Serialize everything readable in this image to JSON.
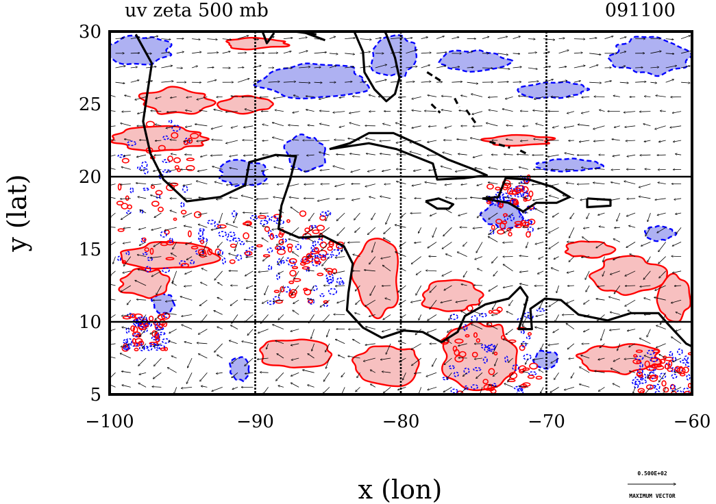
{
  "chart_data": {
    "type": "contour",
    "title": "uv zeta 500 mb",
    "date_label": "091100",
    "xlabel": "x (lon)",
    "ylabel": "y (lat)",
    "xlim": [
      -100,
      -60
    ],
    "ylim": [
      5,
      30
    ],
    "x_ticks": [
      -100,
      -90,
      -80,
      -70,
      -60
    ],
    "y_ticks": [
      5,
      10,
      15,
      20,
      25,
      30
    ],
    "x_tick_labels": [
      "−100",
      "−90",
      "−80",
      "−70",
      "−60"
    ],
    "y_tick_labels": [
      "5",
      "10",
      "15",
      "20",
      "25",
      "30"
    ],
    "gridlines_lon": [
      -90,
      -80,
      -70
    ],
    "gridlines_lat": [
      10,
      20
    ],
    "legend": {
      "value_label": "0.500E+02",
      "caption": "MAXIMUM VECTOR"
    },
    "colors": {
      "positive_line": "#ff0000",
      "positive_fill": "#f7c0c0",
      "negative_line": "#0000ff",
      "negative_fill": "#aeb1f2",
      "coast": "#000000"
    },
    "positive_regions": [
      {
        "lon": -95.5,
        "lat": 25.2,
        "rlon": 2.5,
        "rlat": 0.9
      },
      {
        "lon": -90.7,
        "lat": 25.0,
        "rlon": 1.8,
        "rlat": 0.6
      },
      {
        "lon": -96.5,
        "lat": 22.6,
        "rlon": 3.2,
        "rlat": 0.8
      },
      {
        "lon": -90.0,
        "lat": 29.2,
        "rlon": 2.2,
        "rlat": 0.4
      },
      {
        "lon": -95.8,
        "lat": 14.6,
        "rlon": 3.3,
        "rlat": 0.9
      },
      {
        "lon": -97.5,
        "lat": 12.6,
        "rlon": 1.8,
        "rlat": 1.0
      },
      {
        "lon": -81.6,
        "lat": 13.0,
        "rlon": 1.6,
        "rlat": 2.5
      },
      {
        "lon": -76.6,
        "lat": 11.8,
        "rlon": 2.2,
        "rlat": 1.0
      },
      {
        "lon": -87.2,
        "lat": 7.8,
        "rlon": 2.6,
        "rlat": 1.0
      },
      {
        "lon": -81.0,
        "lat": 7.0,
        "rlon": 2.6,
        "rlat": 1.4
      },
      {
        "lon": -74.4,
        "lat": 7.6,
        "rlon": 2.8,
        "rlat": 2.2
      },
      {
        "lon": -64.4,
        "lat": 13.2,
        "rlon": 2.4,
        "rlat": 1.3
      },
      {
        "lon": -67.0,
        "lat": 15.0,
        "rlon": 1.6,
        "rlat": 0.6
      },
      {
        "lon": -61.3,
        "lat": 11.5,
        "rlon": 1.1,
        "rlat": 1.6
      },
      {
        "lon": -65.0,
        "lat": 7.4,
        "rlon": 3.0,
        "rlat": 1.0
      },
      {
        "lon": -72.0,
        "lat": 22.5,
        "rlon": 2.4,
        "rlat": 0.35
      }
    ],
    "negative_regions": [
      {
        "lon": -98.0,
        "lat": 28.7,
        "rlon": 2.2,
        "rlat": 1.0
      },
      {
        "lon": -86.0,
        "lat": 26.6,
        "rlon": 4.0,
        "rlat": 1.1
      },
      {
        "lon": -80.5,
        "lat": 28.3,
        "rlon": 1.6,
        "rlat": 1.5
      },
      {
        "lon": -75.0,
        "lat": 28.0,
        "rlon": 2.5,
        "rlat": 0.7
      },
      {
        "lon": -69.5,
        "lat": 26.0,
        "rlon": 2.2,
        "rlat": 0.6
      },
      {
        "lon": -62.8,
        "lat": 28.3,
        "rlon": 2.7,
        "rlat": 1.3
      },
      {
        "lon": -90.8,
        "lat": 20.2,
        "rlon": 1.6,
        "rlat": 0.9
      },
      {
        "lon": -86.5,
        "lat": 21.6,
        "rlon": 1.4,
        "rlat": 1.2
      },
      {
        "lon": -68.5,
        "lat": 20.8,
        "rlon": 2.2,
        "rlat": 0.45
      },
      {
        "lon": -73.0,
        "lat": 17.5,
        "rlon": 1.4,
        "rlat": 1.0
      },
      {
        "lon": -96.3,
        "lat": 11.3,
        "rlon": 0.8,
        "rlat": 0.7
      },
      {
        "lon": -91.1,
        "lat": 6.7,
        "rlon": 0.7,
        "rlat": 0.8
      },
      {
        "lon": -70.0,
        "lat": 7.4,
        "rlon": 0.8,
        "rlat": 0.6
      },
      {
        "lon": -62.2,
        "lat": 16.1,
        "rlon": 1.0,
        "rlat": 0.5
      }
    ],
    "coastlines": [
      [
        [
          -98.2,
          29.8
        ],
        [
          -97.1,
          27.8
        ],
        [
          -97.4,
          25.8
        ],
        [
          -97.7,
          23.8
        ],
        [
          -97.2,
          21.6
        ],
        [
          -96.3,
          19.8
        ],
        [
          -94.7,
          18.3
        ],
        [
          -92.4,
          18.6
        ],
        [
          -90.7,
          19.4
        ],
        [
          -90.4,
          21.0
        ],
        [
          -88.6,
          21.5
        ],
        [
          -87.2,
          21.4
        ],
        [
          -87.6,
          19.8
        ],
        [
          -88.2,
          18.0
        ],
        [
          -88.4,
          16.4
        ],
        [
          -87.0,
          15.8
        ],
        [
          -85.3,
          15.9
        ],
        [
          -83.9,
          15.2
        ],
        [
          -83.3,
          14.0
        ],
        [
          -83.6,
          12.0
        ],
        [
          -83.7,
          10.8
        ],
        [
          -82.6,
          9.6
        ],
        [
          -81.3,
          8.9
        ],
        [
          -79.8,
          9.4
        ],
        [
          -78.5,
          9.3
        ],
        [
          -77.2,
          8.6
        ],
        [
          -76.1,
          9.3
        ],
        [
          -75.6,
          10.4
        ],
        [
          -74.2,
          11.2
        ],
        [
          -72.6,
          11.6
        ],
        [
          -71.8,
          12.4
        ],
        [
          -71.3,
          11.7
        ],
        [
          -71.6,
          10.5
        ],
        [
          -71.9,
          9.5
        ],
        [
          -71.0,
          9.5
        ],
        [
          -71.1,
          10.9
        ],
        [
          -70.1,
          11.6
        ],
        [
          -69.0,
          11.5
        ],
        [
          -67.8,
          10.5
        ],
        [
          -65.8,
          10.1
        ],
        [
          -64.2,
          10.6
        ],
        [
          -62.3,
          10.6
        ],
        [
          -61.7,
          9.9
        ],
        [
          -60.4,
          8.5
        ],
        [
          -60.0,
          8.3
        ]
      ],
      [
        [
          -85.2,
          29.4
        ],
        [
          -86.8,
          30.0
        ]
      ],
      [
        [
          -89.5,
          30.0
        ],
        [
          -89.2,
          29.2
        ],
        [
          -88.7,
          29.9
        ]
      ],
      [
        [
          -83.2,
          30.0
        ],
        [
          -82.6,
          28.6
        ],
        [
          -82.5,
          27.2
        ],
        [
          -81.8,
          26.0
        ],
        [
          -81.0,
          25.2
        ],
        [
          -80.4,
          25.7
        ],
        [
          -80.1,
          26.8
        ],
        [
          -80.4,
          28.2
        ],
        [
          -81.0,
          29.8
        ],
        [
          -81.1,
          30.0
        ]
      ],
      [
        [
          -84.9,
          21.9
        ],
        [
          -83.5,
          22.3
        ],
        [
          -82.2,
          23.0
        ],
        [
          -80.5,
          23.0
        ],
        [
          -78.5,
          22.1
        ],
        [
          -76.8,
          21.2
        ],
        [
          -75.0,
          20.5
        ],
        [
          -74.1,
          20.1
        ],
        [
          -75.6,
          19.9
        ],
        [
          -77.5,
          19.8
        ],
        [
          -77.8,
          20.9
        ],
        [
          -80.3,
          21.9
        ],
        [
          -82.2,
          22.3
        ],
        [
          -84.9,
          21.9
        ]
      ],
      [
        [
          -78.3,
          18.3
        ],
        [
          -77.4,
          18.5
        ],
        [
          -76.4,
          18.1
        ],
        [
          -76.7,
          17.8
        ],
        [
          -77.5,
          17.8
        ],
        [
          -78.3,
          18.3
        ]
      ],
      [
        [
          -74.4,
          18.5
        ],
        [
          -73.3,
          18.6
        ],
        [
          -72.8,
          19.9
        ],
        [
          -71.2,
          19.8
        ],
        [
          -69.6,
          19.3
        ],
        [
          -68.4,
          18.6
        ],
        [
          -69.3,
          18.2
        ],
        [
          -70.7,
          18.2
        ],
        [
          -71.6,
          17.6
        ],
        [
          -72.6,
          18.2
        ],
        [
          -74.4,
          18.5
        ]
      ],
      [
        [
          -67.2,
          18.5
        ],
        [
          -65.6,
          18.4
        ],
        [
          -65.6,
          18.0
        ],
        [
          -67.2,
          17.9
        ],
        [
          -67.2,
          18.5
        ]
      ],
      [
        [
          -87.3,
          30.0
        ],
        [
          -85.8,
          29.8
        ]
      ]
    ],
    "bahamas": [
      [
        [
          -78.2,
          27.2
        ],
        [
          -77.1,
          26.5
        ]
      ],
      [
        [
          -77.9,
          25.0
        ],
        [
          -77.3,
          24.4
        ]
      ],
      [
        [
          -75.5,
          24.6
        ],
        [
          -74.8,
          23.6
        ]
      ],
      [
        [
          -73.9,
          22.4
        ],
        [
          -72.5,
          22.0
        ]
      ],
      [
        [
          -71.8,
          21.8
        ],
        [
          -71.2,
          21.5
        ]
      ],
      [
        [
          -76.3,
          25.4
        ],
        [
          -76.0,
          24.8
        ]
      ]
    ],
    "wind_scale_max": 50
  }
}
